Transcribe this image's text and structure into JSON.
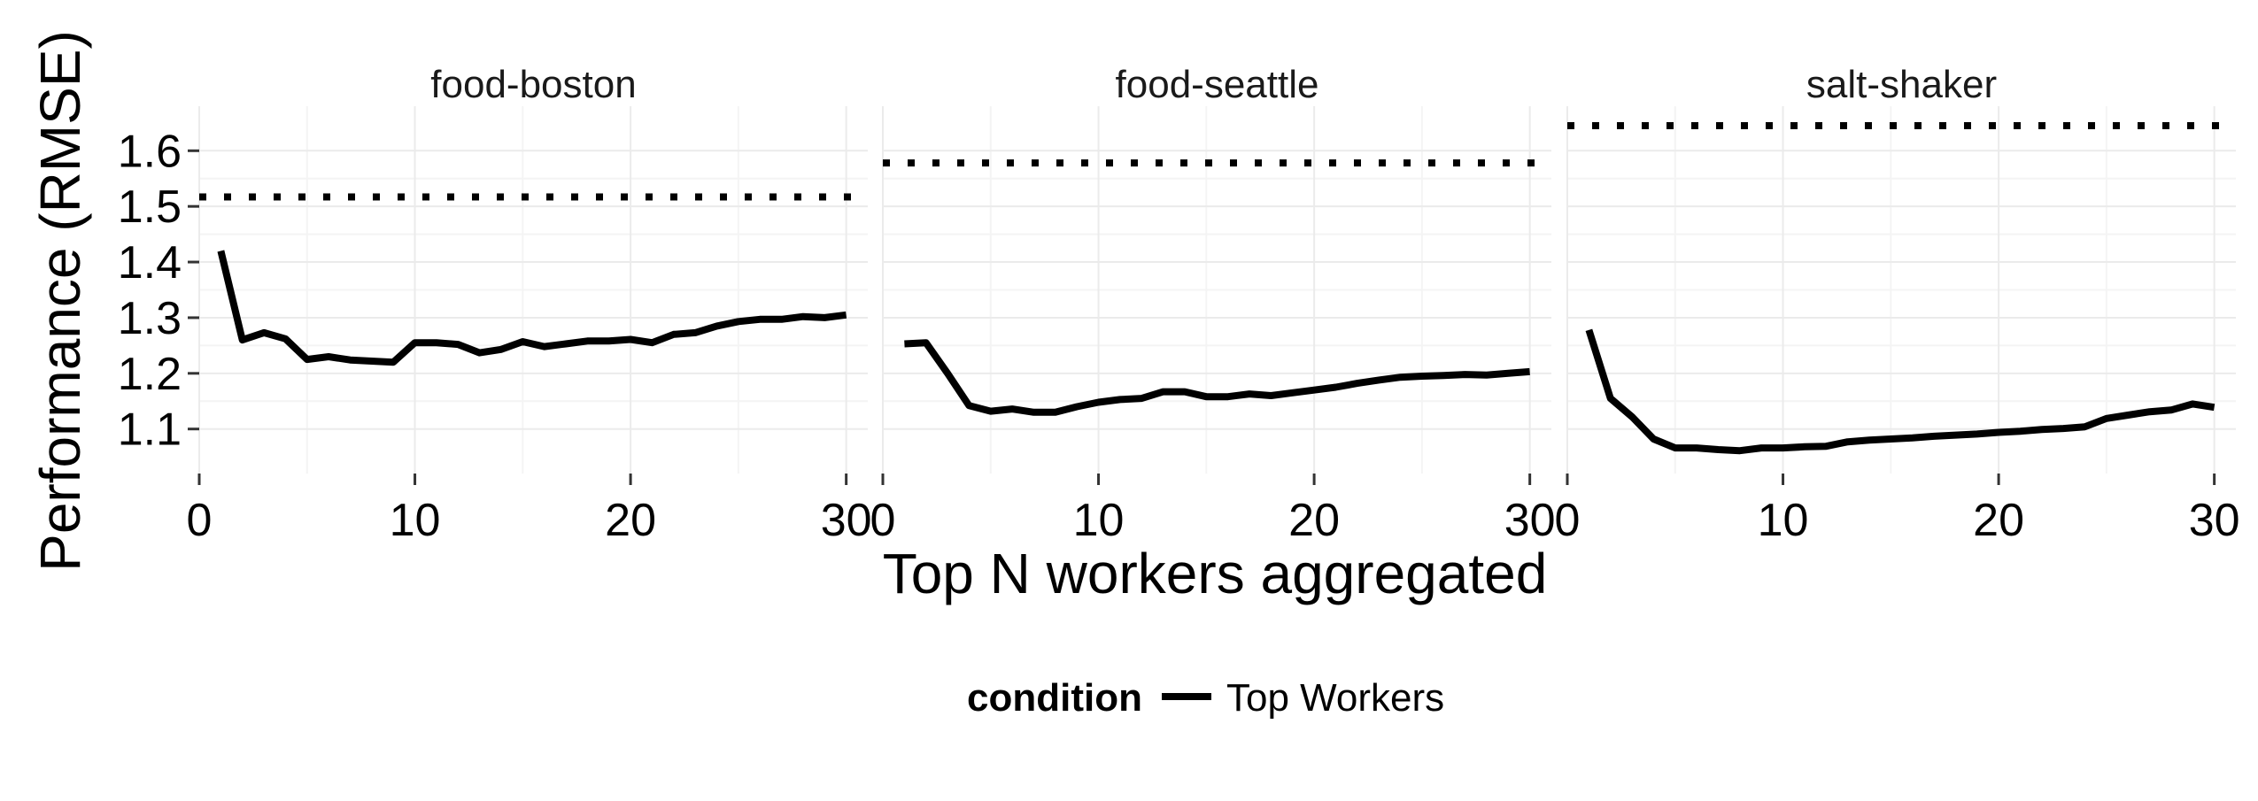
{
  "chart_data": {
    "type": "line",
    "xlabel": "Top N workers aggregated",
    "ylabel": "Performance (RMSE)",
    "xlim": [
      0,
      31
    ],
    "ylim": [
      1.02,
      1.68
    ],
    "x_ticks": [
      0,
      10,
      20,
      30
    ],
    "y_ticks": [
      1.1,
      1.2,
      1.3,
      1.4,
      1.5,
      1.6
    ],
    "grid": true,
    "legend": {
      "title": "condition",
      "position": "bottom",
      "entries": [
        {
          "label": "Top Workers",
          "style": "solid",
          "color": "#000000"
        }
      ]
    },
    "facets": [
      {
        "title": "food-boston",
        "reference_line": 1.517,
        "series": [
          {
            "name": "Top Workers",
            "x": [
              1,
              2,
              3,
              4,
              5,
              6,
              7,
              8,
              9,
              10,
              11,
              12,
              13,
              14,
              15,
              16,
              17,
              18,
              19,
              20,
              21,
              22,
              23,
              24,
              25,
              26,
              27,
              28,
              29,
              30
            ],
            "y": [
              1.42,
              1.26,
              1.273,
              1.262,
              1.225,
              1.23,
              1.224,
              1.222,
              1.22,
              1.255,
              1.255,
              1.252,
              1.237,
              1.243,
              1.257,
              1.248,
              1.253,
              1.258,
              1.258,
              1.261,
              1.255,
              1.27,
              1.273,
              1.285,
              1.293,
              1.297,
              1.297,
              1.302,
              1.3,
              1.305
            ]
          }
        ]
      },
      {
        "title": "food-seattle",
        "reference_line": 1.578,
        "series": [
          {
            "name": "Top Workers",
            "x": [
              1,
              2,
              3,
              4,
              5,
              6,
              7,
              8,
              9,
              10,
              11,
              12,
              13,
              14,
              15,
              16,
              17,
              18,
              19,
              20,
              21,
              22,
              23,
              24,
              25,
              26,
              27,
              28,
              29,
              30
            ],
            "y": [
              1.253,
              1.255,
              1.2,
              1.142,
              1.132,
              1.136,
              1.13,
              1.13,
              1.14,
              1.148,
              1.153,
              1.155,
              1.167,
              1.167,
              1.158,
              1.158,
              1.163,
              1.16,
              1.165,
              1.17,
              1.175,
              1.182,
              1.188,
              1.193,
              1.195,
              1.196,
              1.198,
              1.197,
              1.2,
              1.203
            ]
          }
        ]
      },
      {
        "title": "salt-shaker",
        "reference_line": 1.645,
        "series": [
          {
            "name": "Top Workers",
            "x": [
              1,
              2,
              3,
              4,
              5,
              6,
              7,
              8,
              9,
              10,
              11,
              12,
              13,
              14,
              15,
              16,
              17,
              18,
              19,
              20,
              21,
              22,
              23,
              24,
              25,
              26,
              27,
              28,
              29,
              30
            ],
            "y": [
              1.278,
              1.155,
              1.122,
              1.082,
              1.066,
              1.066,
              1.063,
              1.061,
              1.066,
              1.066,
              1.068,
              1.069,
              1.077,
              1.08,
              1.082,
              1.084,
              1.087,
              1.089,
              1.091,
              1.094,
              1.096,
              1.099,
              1.101,
              1.104,
              1.119,
              1.125,
              1.131,
              1.134,
              1.145,
              1.139
            ]
          }
        ]
      }
    ]
  }
}
